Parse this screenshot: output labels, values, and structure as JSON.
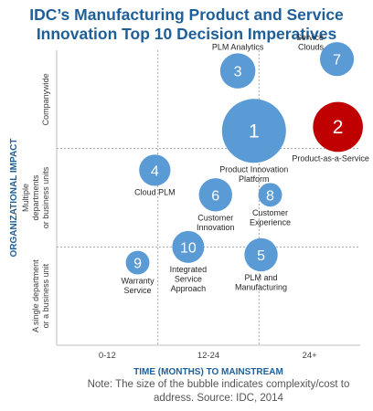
{
  "chart_data": {
    "type": "bubble",
    "title_lines": [
      "IDC’s Manufacturing Product and Service",
      "Innovation Top 10 Decision Imperatives"
    ],
    "xlabel": "TIME (MONTHS) TO MAINSTREAM",
    "ylabel": "ORGANIZATIONAL IMPACT",
    "x_categories": [
      "0-12",
      "12-24",
      "24+"
    ],
    "y_categories": [
      [
        "A single department",
        "or a business unit"
      ],
      [
        "Multiple",
        "departments",
        "or business units"
      ],
      [
        "Companywide"
      ]
    ],
    "xlim": [
      0,
      3
    ],
    "ylim": [
      0,
      3
    ],
    "grid": "dotted",
    "note": "Note: The size of the bubble indicates complexity/cost to address. Source: IDC, 2014",
    "colors": {
      "bubble": "#5b9bd5",
      "highlight": "#c00000",
      "title": "#1f5f99",
      "axis_label": "#1f5f99"
    },
    "bubbles": [
      {
        "id": "1",
        "label": [
          "Product Innovation",
          "Platform"
        ],
        "x": 1.95,
        "y": 2.18,
        "size": 1.0,
        "color": "#5b9bd5",
        "label_pos": "below"
      },
      {
        "id": "2",
        "label": [
          "Product-as-a-Service"
        ],
        "x": 2.78,
        "y": 2.22,
        "size": 0.78,
        "color": "#c00000",
        "label_pos": "below-left"
      },
      {
        "id": "3",
        "label": [
          "PLM Analytics"
        ],
        "x": 1.79,
        "y": 2.79,
        "size": 0.55,
        "color": "#5b9bd5",
        "label_pos": "above"
      },
      {
        "id": "4",
        "label": [
          "Cloud PLM"
        ],
        "x": 0.97,
        "y": 1.78,
        "size": 0.49,
        "color": "#5b9bd5",
        "label_pos": "below"
      },
      {
        "id": "5",
        "label": [
          "PLM and",
          "Manufacturing"
        ],
        "x": 2.02,
        "y": 0.92,
        "size": 0.52,
        "color": "#5b9bd5",
        "label_pos": "below"
      },
      {
        "id": "6",
        "label": [
          "Customer",
          "Innovation"
        ],
        "x": 1.57,
        "y": 1.53,
        "size": 0.52,
        "color": "#5b9bd5",
        "label_pos": "below"
      },
      {
        "id": "7",
        "label": [
          "Service",
          "Clouds"
        ],
        "x": 2.77,
        "y": 2.91,
        "size": 0.53,
        "color": "#5b9bd5",
        "label_pos": "left"
      },
      {
        "id": "8",
        "label": [
          "Customer",
          "Experience"
        ],
        "x": 2.11,
        "y": 1.53,
        "size": 0.37,
        "color": "#5b9bd5",
        "label_pos": "below"
      },
      {
        "id": "9",
        "label": [
          "Warranty",
          "Service"
        ],
        "x": 0.8,
        "y": 0.84,
        "size": 0.37,
        "color": "#5b9bd5",
        "label_pos": "below"
      },
      {
        "id": "10",
        "label": [
          "Integrated",
          "Service",
          "Approach"
        ],
        "x": 1.3,
        "y": 1.0,
        "size": 0.5,
        "color": "#5b9bd5",
        "label_pos": "below"
      }
    ]
  }
}
